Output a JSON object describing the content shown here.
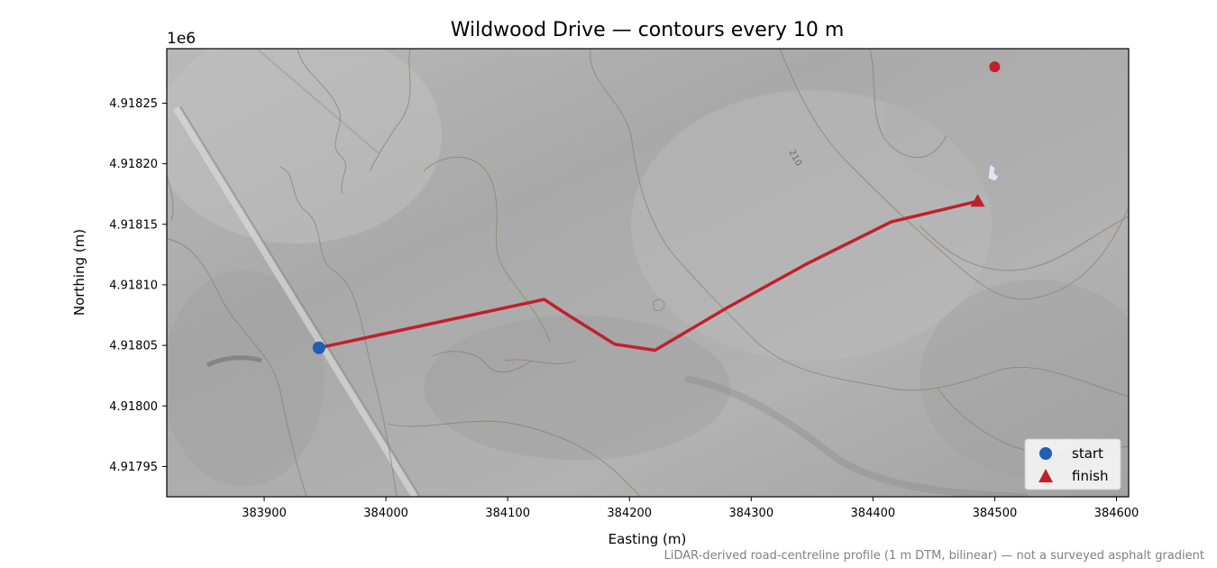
{
  "chart_data": {
    "type": "line",
    "title": "Wildwood Drive — contours every 10 m",
    "xlabel": "Easting (m)",
    "ylabel": "Northing (m)",
    "offset_label": "1e6",
    "xlim": [
      383820,
      384610
    ],
    "ylim": [
      4917925,
      4918295
    ],
    "xticks": [
      383900,
      384000,
      384100,
      384200,
      384300,
      384400,
      384500,
      384600
    ],
    "xtick_labels": [
      "383900",
      "384000",
      "384100",
      "384200",
      "384300",
      "384400",
      "384500",
      "384600"
    ],
    "yticks": [
      4917950,
      4918000,
      4918050,
      4918100,
      4918150,
      4918200,
      4918250
    ],
    "ytick_labels": [
      "4.91795",
      "4.91800",
      "4.91805",
      "4.91810",
      "4.91815",
      "4.91820",
      "4.91825"
    ],
    "grid": false,
    "route": {
      "color": "#c0202c",
      "x": [
        383945,
        384130,
        384145,
        384188,
        384221,
        384280,
        384345,
        384415,
        384486
      ],
      "y": [
        4918048,
        4918088,
        4918078,
        4918051,
        4918046,
        4918081,
        4918117,
        4918152,
        4918169
      ]
    },
    "start": {
      "label": "start",
      "x": 383945,
      "y": 4918048,
      "color": "#1f5fb5",
      "marker": "circle"
    },
    "finish": {
      "label": "finish",
      "x": 384486,
      "y": 4918169,
      "color": "#c0202c",
      "marker": "triangle"
    },
    "extra_point": {
      "x": 384500,
      "y": 4918280,
      "color": "#c0202c"
    },
    "contour_label": "210",
    "legend_placement": "bottom-right",
    "footnote": "LiDAR-derived road-centreline profile (1 m DTM, bilinear) — not a surveyed asphalt gradient"
  }
}
